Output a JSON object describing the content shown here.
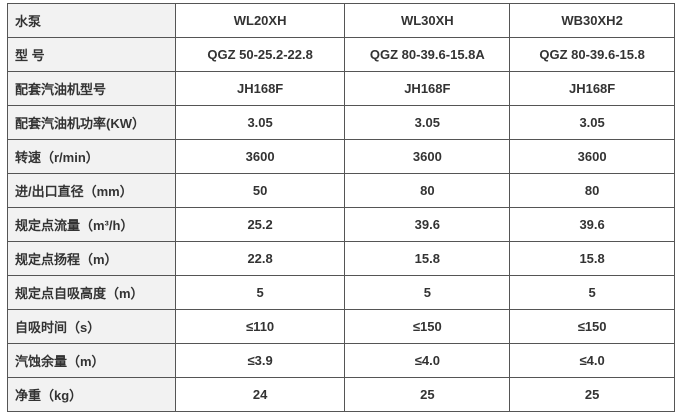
{
  "table": {
    "rows": [
      {
        "label": "水泵",
        "values": [
          "WL20XH",
          "WL30XH",
          "WB30XH2"
        ]
      },
      {
        "label": "型 号",
        "values": [
          "QGZ 50-25.2-22.8",
          "QGZ 80-39.6-15.8A",
          "QGZ 80-39.6-15.8"
        ]
      },
      {
        "label": "配套汽油机型号",
        "values": [
          "JH168F",
          "JH168F",
          "JH168F"
        ]
      },
      {
        "label": "配套汽油机功率(KW）",
        "values": [
          "3.05",
          "3.05",
          "3.05"
        ]
      },
      {
        "label": "转速（r/min）",
        "values": [
          "3600",
          "3600",
          "3600"
        ]
      },
      {
        "label": "进/出口直径（mm）",
        "values": [
          "50",
          "80",
          "80"
        ]
      },
      {
        "label": "规定点流量（m³/h）",
        "values": [
          "25.2",
          "39.6",
          "39.6"
        ]
      },
      {
        "label": "规定点扬程（m）",
        "values": [
          "22.8",
          "15.8",
          "15.8"
        ]
      },
      {
        "label": "规定点自吸高度（m）",
        "values": [
          "5",
          "5",
          "5"
        ]
      },
      {
        "label": "自吸时间（s）",
        "values": [
          "≤110",
          "≤150",
          "≤150"
        ]
      },
      {
        "label": "汽蚀余量（m）",
        "values": [
          "≤3.9",
          "≤4.0",
          "≤4.0"
        ]
      },
      {
        "label": "净重（kg）",
        "values": [
          "24",
          "25",
          "25"
        ]
      }
    ]
  }
}
